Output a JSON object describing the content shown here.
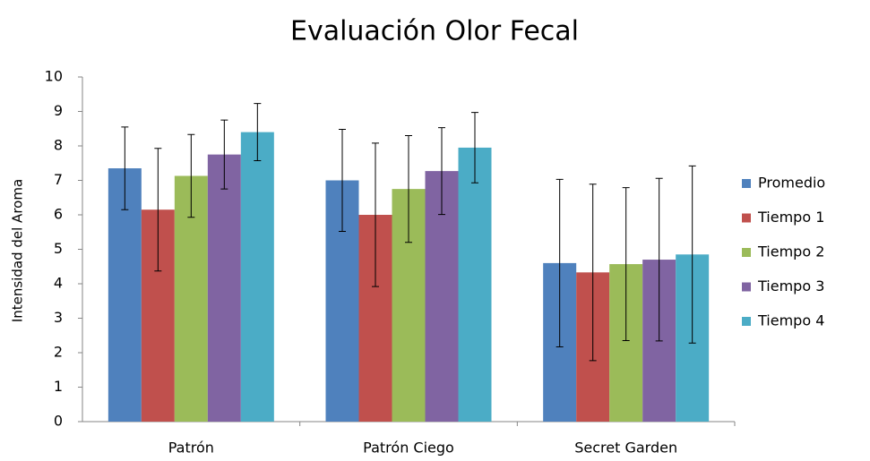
{
  "chart_data": {
    "type": "bar",
    "title": "Evaluación Olor Fecal",
    "ylabel": "Intensidad del Aroma",
    "categories": [
      "Patrón",
      "Patrón Ciego",
      "Secret Garden"
    ],
    "series": [
      {
        "name": "Promedio",
        "color": "#4f81bd",
        "values": [
          7.35,
          7.0,
          4.6
        ],
        "errors": [
          1.2,
          1.48,
          2.43
        ]
      },
      {
        "name": "Tiempo 1",
        "color": "#c0504d",
        "values": [
          6.15,
          6.0,
          4.33
        ],
        "errors": [
          1.78,
          2.08,
          2.56
        ]
      },
      {
        "name": "Tiempo 2",
        "color": "#9bbb59",
        "values": [
          7.13,
          6.75,
          4.57
        ],
        "errors": [
          1.2,
          1.55,
          2.22
        ]
      },
      {
        "name": "Tiempo 3",
        "color": "#8064a2",
        "values": [
          7.75,
          7.27,
          4.7
        ],
        "errors": [
          1.0,
          1.26,
          2.36
        ]
      },
      {
        "name": "Tiempo 4",
        "color": "#4bacc6",
        "values": [
          8.4,
          7.95,
          4.85
        ],
        "errors": [
          0.83,
          1.02,
          2.57
        ]
      }
    ],
    "ylim": [
      0,
      10
    ],
    "yticks": [
      0,
      1,
      2,
      3,
      4,
      5,
      6,
      7,
      8,
      9,
      10
    ],
    "grid": false,
    "legend": "right"
  }
}
